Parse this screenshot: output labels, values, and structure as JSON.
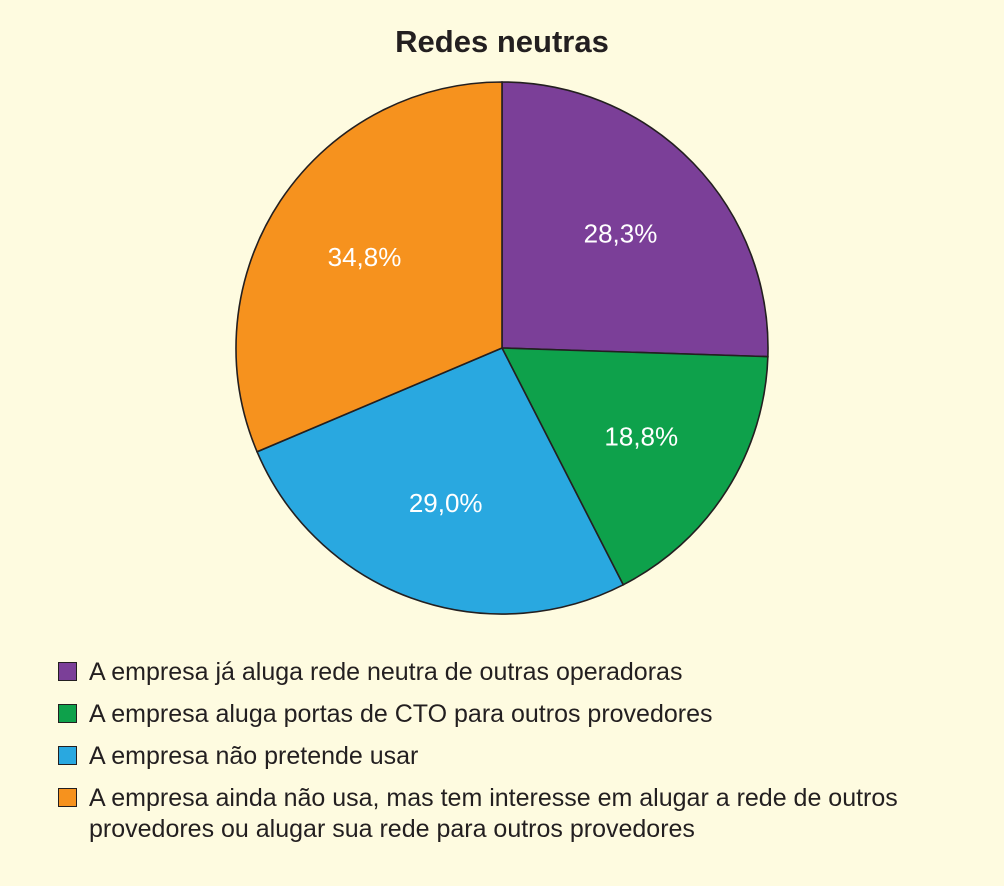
{
  "chart_data": {
    "type": "pie",
    "title": "Redes neutras",
    "slices": [
      {
        "label": "A empresa já aluga rede neutra de outras operadoras",
        "value": 28.3,
        "display": "28,3%",
        "color": "#7b3f98"
      },
      {
        "label": "A empresa aluga portas de CTO para outros provedores",
        "value": 18.8,
        "display": "18,8%",
        "color": "#0ea14b"
      },
      {
        "label": "A empresa não pretende usar",
        "value": 29.0,
        "display": "29,0%",
        "color": "#29a8e0"
      },
      {
        "label": "A empresa ainda não usa, mas tem interesse em alugar a rede de outros provedores ou alugar sua rede para outros provedores",
        "value": 34.8,
        "display": "34,8%",
        "color": "#f6921e"
      }
    ],
    "legend_position": "bottom-left"
  }
}
